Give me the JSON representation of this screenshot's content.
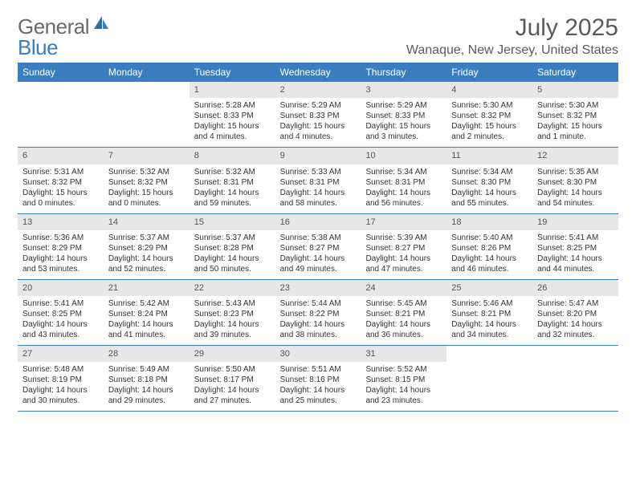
{
  "logo": {
    "text1": "General",
    "text2": "Blue"
  },
  "title": "July 2025",
  "location": "Wanaque, New Jersey, United States",
  "colors": {
    "header_bar": "#3b7ec0",
    "header_text": "#ffffff",
    "daynum_bg": "#e7e7e7",
    "rule": "#3b7ec0",
    "body_text": "#333333",
    "title_text": "#5a5a5a",
    "logo_gray": "#6a6a6a",
    "logo_blue": "#3b7ec0",
    "background": "#ffffff"
  },
  "weekdays": [
    "Sunday",
    "Monday",
    "Tuesday",
    "Wednesday",
    "Thursday",
    "Friday",
    "Saturday"
  ],
  "weeks": [
    [
      {
        "n": "",
        "sr": "",
        "ss": "",
        "dl": ""
      },
      {
        "n": "",
        "sr": "",
        "ss": "",
        "dl": ""
      },
      {
        "n": "1",
        "sr": "Sunrise: 5:28 AM",
        "ss": "Sunset: 8:33 PM",
        "dl": "Daylight: 15 hours and 4 minutes."
      },
      {
        "n": "2",
        "sr": "Sunrise: 5:29 AM",
        "ss": "Sunset: 8:33 PM",
        "dl": "Daylight: 15 hours and 4 minutes."
      },
      {
        "n": "3",
        "sr": "Sunrise: 5:29 AM",
        "ss": "Sunset: 8:33 PM",
        "dl": "Daylight: 15 hours and 3 minutes."
      },
      {
        "n": "4",
        "sr": "Sunrise: 5:30 AM",
        "ss": "Sunset: 8:32 PM",
        "dl": "Daylight: 15 hours and 2 minutes."
      },
      {
        "n": "5",
        "sr": "Sunrise: 5:30 AM",
        "ss": "Sunset: 8:32 PM",
        "dl": "Daylight: 15 hours and 1 minute."
      }
    ],
    [
      {
        "n": "6",
        "sr": "Sunrise: 5:31 AM",
        "ss": "Sunset: 8:32 PM",
        "dl": "Daylight: 15 hours and 0 minutes."
      },
      {
        "n": "7",
        "sr": "Sunrise: 5:32 AM",
        "ss": "Sunset: 8:32 PM",
        "dl": "Daylight: 15 hours and 0 minutes."
      },
      {
        "n": "8",
        "sr": "Sunrise: 5:32 AM",
        "ss": "Sunset: 8:31 PM",
        "dl": "Daylight: 14 hours and 59 minutes."
      },
      {
        "n": "9",
        "sr": "Sunrise: 5:33 AM",
        "ss": "Sunset: 8:31 PM",
        "dl": "Daylight: 14 hours and 58 minutes."
      },
      {
        "n": "10",
        "sr": "Sunrise: 5:34 AM",
        "ss": "Sunset: 8:31 PM",
        "dl": "Daylight: 14 hours and 56 minutes."
      },
      {
        "n": "11",
        "sr": "Sunrise: 5:34 AM",
        "ss": "Sunset: 8:30 PM",
        "dl": "Daylight: 14 hours and 55 minutes."
      },
      {
        "n": "12",
        "sr": "Sunrise: 5:35 AM",
        "ss": "Sunset: 8:30 PM",
        "dl": "Daylight: 14 hours and 54 minutes."
      }
    ],
    [
      {
        "n": "13",
        "sr": "Sunrise: 5:36 AM",
        "ss": "Sunset: 8:29 PM",
        "dl": "Daylight: 14 hours and 53 minutes."
      },
      {
        "n": "14",
        "sr": "Sunrise: 5:37 AM",
        "ss": "Sunset: 8:29 PM",
        "dl": "Daylight: 14 hours and 52 minutes."
      },
      {
        "n": "15",
        "sr": "Sunrise: 5:37 AM",
        "ss": "Sunset: 8:28 PM",
        "dl": "Daylight: 14 hours and 50 minutes."
      },
      {
        "n": "16",
        "sr": "Sunrise: 5:38 AM",
        "ss": "Sunset: 8:27 PM",
        "dl": "Daylight: 14 hours and 49 minutes."
      },
      {
        "n": "17",
        "sr": "Sunrise: 5:39 AM",
        "ss": "Sunset: 8:27 PM",
        "dl": "Daylight: 14 hours and 47 minutes."
      },
      {
        "n": "18",
        "sr": "Sunrise: 5:40 AM",
        "ss": "Sunset: 8:26 PM",
        "dl": "Daylight: 14 hours and 46 minutes."
      },
      {
        "n": "19",
        "sr": "Sunrise: 5:41 AM",
        "ss": "Sunset: 8:25 PM",
        "dl": "Daylight: 14 hours and 44 minutes."
      }
    ],
    [
      {
        "n": "20",
        "sr": "Sunrise: 5:41 AM",
        "ss": "Sunset: 8:25 PM",
        "dl": "Daylight: 14 hours and 43 minutes."
      },
      {
        "n": "21",
        "sr": "Sunrise: 5:42 AM",
        "ss": "Sunset: 8:24 PM",
        "dl": "Daylight: 14 hours and 41 minutes."
      },
      {
        "n": "22",
        "sr": "Sunrise: 5:43 AM",
        "ss": "Sunset: 8:23 PM",
        "dl": "Daylight: 14 hours and 39 minutes."
      },
      {
        "n": "23",
        "sr": "Sunrise: 5:44 AM",
        "ss": "Sunset: 8:22 PM",
        "dl": "Daylight: 14 hours and 38 minutes."
      },
      {
        "n": "24",
        "sr": "Sunrise: 5:45 AM",
        "ss": "Sunset: 8:21 PM",
        "dl": "Daylight: 14 hours and 36 minutes."
      },
      {
        "n": "25",
        "sr": "Sunrise: 5:46 AM",
        "ss": "Sunset: 8:21 PM",
        "dl": "Daylight: 14 hours and 34 minutes."
      },
      {
        "n": "26",
        "sr": "Sunrise: 5:47 AM",
        "ss": "Sunset: 8:20 PM",
        "dl": "Daylight: 14 hours and 32 minutes."
      }
    ],
    [
      {
        "n": "27",
        "sr": "Sunrise: 5:48 AM",
        "ss": "Sunset: 8:19 PM",
        "dl": "Daylight: 14 hours and 30 minutes."
      },
      {
        "n": "28",
        "sr": "Sunrise: 5:49 AM",
        "ss": "Sunset: 8:18 PM",
        "dl": "Daylight: 14 hours and 29 minutes."
      },
      {
        "n": "29",
        "sr": "Sunrise: 5:50 AM",
        "ss": "Sunset: 8:17 PM",
        "dl": "Daylight: 14 hours and 27 minutes."
      },
      {
        "n": "30",
        "sr": "Sunrise: 5:51 AM",
        "ss": "Sunset: 8:16 PM",
        "dl": "Daylight: 14 hours and 25 minutes."
      },
      {
        "n": "31",
        "sr": "Sunrise: 5:52 AM",
        "ss": "Sunset: 8:15 PM",
        "dl": "Daylight: 14 hours and 23 minutes."
      },
      {
        "n": "",
        "sr": "",
        "ss": "",
        "dl": ""
      },
      {
        "n": "",
        "sr": "",
        "ss": "",
        "dl": ""
      }
    ]
  ]
}
